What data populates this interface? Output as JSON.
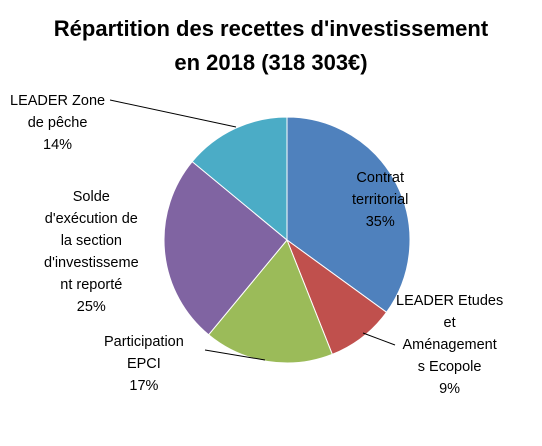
{
  "chart_data": {
    "type": "pie",
    "title_lines": [
      "Répartition des recettes d'investissement",
      "en 2018 (318 303€)"
    ],
    "slices": [
      {
        "label_lines": [
          "Contrat",
          "territorial"
        ],
        "pct_label": "35%",
        "value": 35,
        "color": "#4f81bd"
      },
      {
        "label_lines": [
          "LEADER Etudes",
          "et",
          "Aménagement",
          "s Ecopole"
        ],
        "pct_label": "9%",
        "value": 9,
        "color": "#c0504d"
      },
      {
        "label_lines": [
          "Participation",
          "EPCI"
        ],
        "pct_label": "17%",
        "value": 17,
        "color": "#9bbb59"
      },
      {
        "label_lines": [
          "Solde",
          "d'exécution de",
          "la section",
          "d'investisseme",
          "nt reporté"
        ],
        "pct_label": "25%",
        "value": 25,
        "color": "#8064a2"
      },
      {
        "label_lines": [
          "LEADER Zone",
          "de pêche"
        ],
        "pct_label": "14%",
        "value": 14,
        "color": "#4bacc6"
      }
    ],
    "start_angle_deg": 0,
    "direction": "clockwise",
    "legend": "none"
  }
}
